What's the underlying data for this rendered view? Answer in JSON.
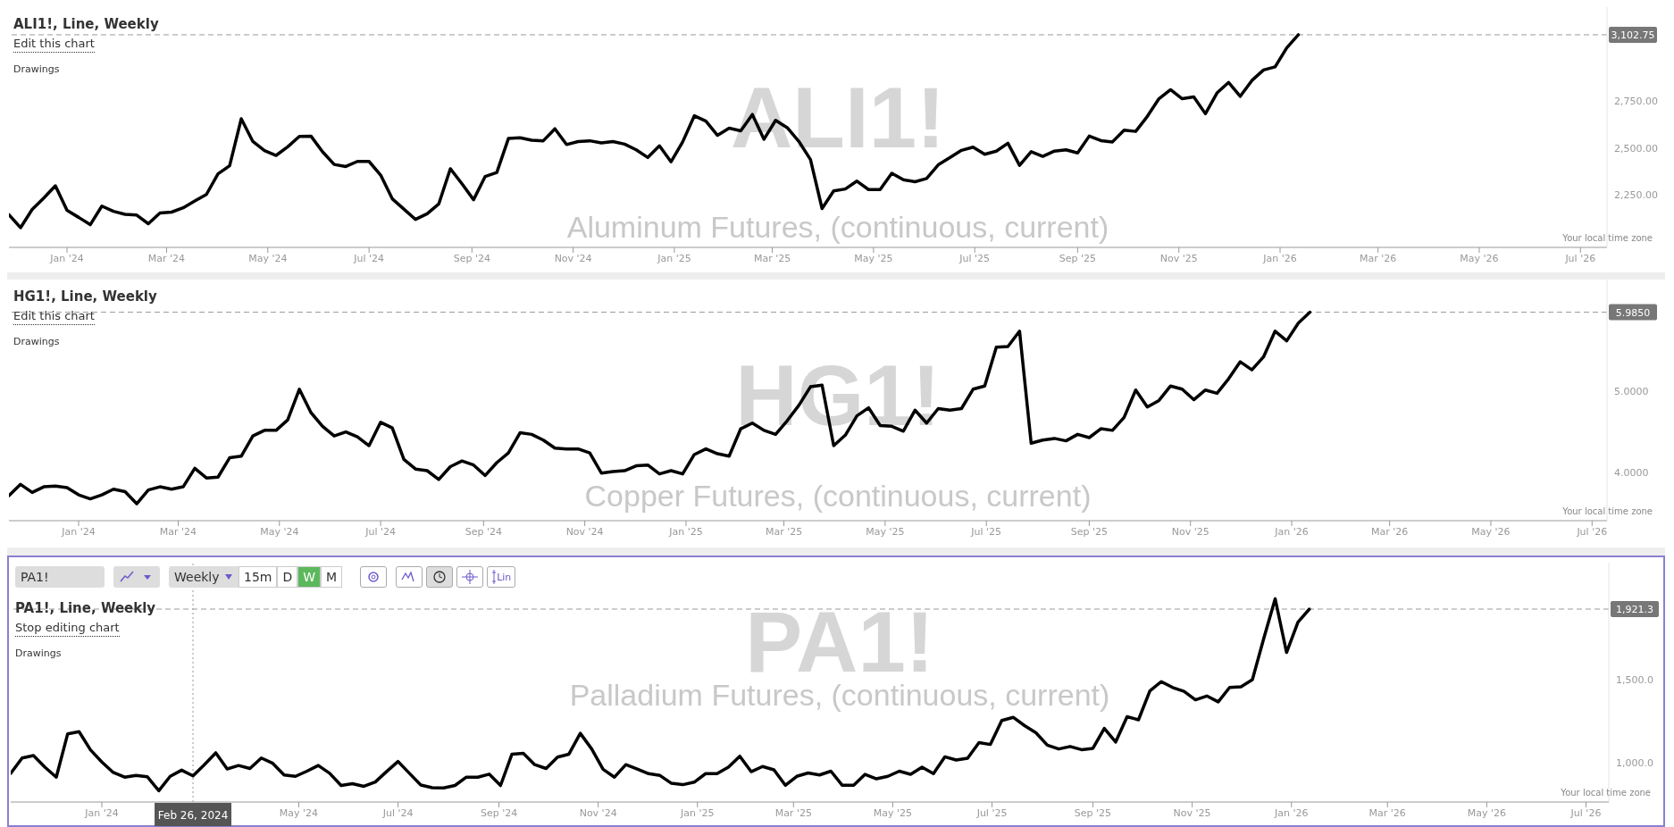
{
  "chart_data": [
    {
      "type": "line",
      "title": "ALI1!, Line, Weekly",
      "annotations": [
        "Edit this chart",
        "Drawings",
        "ALI1!",
        "Aluminum Futures, (continuous, current)",
        "Your local time zone"
      ],
      "x": [
        "2023-11-27",
        "2023-12-04",
        "2023-12-11",
        "2023-12-18",
        "2023-12-25",
        "2024-01-01",
        "2024-01-08",
        "2024-01-15",
        "2024-01-22",
        "2024-01-29",
        "2024-02-05",
        "2024-02-12",
        "2024-02-19",
        "2024-02-26",
        "2024-03-04",
        "2024-03-11",
        "2024-03-18",
        "2024-03-25",
        "2024-04-01",
        "2024-04-08",
        "2024-04-15",
        "2024-04-22",
        "2024-04-29",
        "2024-05-06",
        "2024-05-13",
        "2024-05-20",
        "2024-05-27",
        "2024-06-03",
        "2024-06-10",
        "2024-06-17",
        "2024-06-24",
        "2024-07-01",
        "2024-07-08",
        "2024-07-15",
        "2024-07-22",
        "2024-07-29",
        "2024-08-05",
        "2024-08-12",
        "2024-08-19",
        "2024-08-26",
        "2024-09-02",
        "2024-09-09",
        "2024-09-16",
        "2024-09-23",
        "2024-09-30",
        "2024-10-07",
        "2024-10-14",
        "2024-10-21",
        "2024-10-28",
        "2024-11-04",
        "2024-11-11",
        "2024-11-18",
        "2024-11-25",
        "2024-12-02",
        "2024-12-09",
        "2024-12-16",
        "2024-12-23",
        "2024-12-30",
        "2025-01-06",
        "2025-01-13",
        "2025-01-20",
        "2025-01-27",
        "2025-02-03",
        "2025-02-10",
        "2025-02-17",
        "2025-02-24",
        "2025-03-03",
        "2025-03-10",
        "2025-03-17",
        "2025-03-24",
        "2025-03-31",
        "2025-04-07",
        "2025-04-14",
        "2025-04-21",
        "2025-04-28",
        "2025-05-05",
        "2025-05-12",
        "2025-05-19",
        "2025-05-26",
        "2025-06-02",
        "2025-06-09",
        "2025-06-16",
        "2025-06-23",
        "2025-06-30",
        "2025-07-07",
        "2025-07-14",
        "2025-07-21",
        "2025-07-28",
        "2025-08-04",
        "2025-08-11",
        "2025-08-18",
        "2025-08-25",
        "2025-09-01",
        "2025-09-08",
        "2025-09-15",
        "2025-09-22",
        "2025-09-29",
        "2025-10-06",
        "2025-10-13",
        "2025-10-20",
        "2025-10-27",
        "2025-11-03",
        "2025-11-10",
        "2025-11-17",
        "2025-11-24",
        "2025-12-01",
        "2025-12-08",
        "2025-12-15",
        "2025-12-22",
        "2025-12-29",
        "2026-01-05",
        "2026-01-12"
      ],
      "series": [
        {
          "color": "#000000",
          "values": [
            2144,
            2075,
            2172,
            2233,
            2298,
            2167,
            2130,
            2091,
            2190,
            2162,
            2146,
            2142,
            2096,
            2153,
            2158,
            2181,
            2217,
            2252,
            2362,
            2405,
            2655,
            2534,
            2486,
            2460,
            2506,
            2561,
            2563,
            2479,
            2412,
            2401,
            2428,
            2428,
            2355,
            2229,
            2174,
            2119,
            2149,
            2201,
            2389,
            2309,
            2224,
            2348,
            2369,
            2550,
            2554,
            2541,
            2538,
            2602,
            2518,
            2534,
            2538,
            2527,
            2534,
            2520,
            2490,
            2449,
            2511,
            2426,
            2532,
            2671,
            2643,
            2567,
            2605,
            2591,
            2678,
            2546,
            2647,
            2608,
            2535,
            2438,
            2177,
            2271,
            2281,
            2323,
            2278,
            2278,
            2365,
            2330,
            2320,
            2337,
            2410,
            2448,
            2487,
            2504,
            2466,
            2483,
            2525,
            2407,
            2480,
            2455,
            2483,
            2490,
            2473,
            2563,
            2539,
            2532,
            2595,
            2588,
            2668,
            2762,
            2810,
            2762,
            2772,
            2682,
            2793,
            2849,
            2775,
            2859,
            2915,
            2932,
            3033,
            3102.75
          ]
        }
      ],
      "line_style": "solid",
      "xlim": [
        "2023-11-27",
        "2026-07-17"
      ],
      "xticks": [
        {
          "value": "2024-01-01",
          "label": "Jan '24"
        },
        {
          "value": "2024-03-01",
          "label": "Mar '24"
        },
        {
          "value": "2024-05-01",
          "label": "May '24"
        },
        {
          "value": "2024-07-01",
          "label": "Jul '24"
        },
        {
          "value": "2024-09-01",
          "label": "Sep '24"
        },
        {
          "value": "2024-11-01",
          "label": "Nov '24"
        },
        {
          "value": "2025-01-01",
          "label": "Jan '25"
        },
        {
          "value": "2025-03-01",
          "label": "Mar '25"
        },
        {
          "value": "2025-05-01",
          "label": "May '25"
        },
        {
          "value": "2025-07-01",
          "label": "Jul '25"
        },
        {
          "value": "2025-09-01",
          "label": "Sep '25"
        },
        {
          "value": "2025-11-01",
          "label": "Nov '25"
        },
        {
          "value": "2026-01-01",
          "label": "Jan '26"
        },
        {
          "value": "2026-03-01",
          "label": "Mar '26"
        },
        {
          "value": "2026-05-01",
          "label": "May '26"
        },
        {
          "value": "2026-07-01",
          "label": "Jul '26"
        }
      ],
      "ylim": [
        1970,
        3250
      ],
      "yticks": [
        {
          "value": 2250,
          "label": "2,250.00"
        },
        {
          "value": 2500,
          "label": "2,500.00"
        },
        {
          "value": 2750,
          "label": "2,750.00"
        }
      ],
      "ref_lines": [
        {
          "axis": "y",
          "value": 3102.75,
          "label": "3,102.75",
          "line_style": "dashed",
          "color": "#999999"
        }
      ]
    },
    {
      "type": "line",
      "title": "HG1!, Line, Weekly",
      "annotations": [
        "Edit this chart",
        "Drawings",
        "HG1!",
        "Copper Futures, (continuous, current)",
        "Your local time zone"
      ],
      "x": [
        "2023-11-20",
        "2023-11-27",
        "2023-12-04",
        "2023-12-11",
        "2023-12-18",
        "2023-12-25",
        "2024-01-01",
        "2024-01-08",
        "2024-01-15",
        "2024-01-22",
        "2024-01-29",
        "2024-02-05",
        "2024-02-12",
        "2024-02-19",
        "2024-02-26",
        "2024-03-04",
        "2024-03-11",
        "2024-03-18",
        "2024-03-25",
        "2024-04-01",
        "2024-04-08",
        "2024-04-15",
        "2024-04-22",
        "2024-04-29",
        "2024-05-06",
        "2024-05-13",
        "2024-05-20",
        "2024-05-27",
        "2024-06-03",
        "2024-06-10",
        "2024-06-17",
        "2024-06-24",
        "2024-07-01",
        "2024-07-08",
        "2024-07-15",
        "2024-07-22",
        "2024-07-29",
        "2024-08-05",
        "2024-08-12",
        "2024-08-19",
        "2024-08-26",
        "2024-09-02",
        "2024-09-09",
        "2024-09-16",
        "2024-09-23",
        "2024-09-30",
        "2024-10-07",
        "2024-10-14",
        "2024-10-21",
        "2024-10-28",
        "2024-11-04",
        "2024-11-11",
        "2024-11-18",
        "2024-11-25",
        "2024-12-02",
        "2024-12-09",
        "2024-12-16",
        "2024-12-23",
        "2024-12-30",
        "2025-01-06",
        "2025-01-13",
        "2025-01-20",
        "2025-01-27",
        "2025-02-03",
        "2025-02-10",
        "2025-02-17",
        "2025-02-24",
        "2025-03-03",
        "2025-03-10",
        "2025-03-17",
        "2025-03-24",
        "2025-03-31",
        "2025-04-07",
        "2025-04-14",
        "2025-04-21",
        "2025-04-28",
        "2025-05-05",
        "2025-05-12",
        "2025-05-19",
        "2025-05-26",
        "2025-06-02",
        "2025-06-09",
        "2025-06-16",
        "2025-06-23",
        "2025-06-30",
        "2025-07-07",
        "2025-07-14",
        "2025-07-21",
        "2025-07-28",
        "2025-08-04",
        "2025-08-11",
        "2025-08-18",
        "2025-08-25",
        "2025-09-01",
        "2025-09-08",
        "2025-09-15",
        "2025-09-22",
        "2025-09-29",
        "2025-10-06",
        "2025-10-13",
        "2025-10-20",
        "2025-10-27",
        "2025-11-03",
        "2025-11-10",
        "2025-11-17",
        "2025-11-24",
        "2025-12-01",
        "2025-12-08",
        "2025-12-15",
        "2025-12-22",
        "2025-12-29",
        "2026-01-05",
        "2026-01-12"
      ],
      "series": [
        {
          "color": "#000000",
          "values": [
            3.71,
            3.85,
            3.75,
            3.82,
            3.83,
            3.81,
            3.72,
            3.67,
            3.72,
            3.79,
            3.76,
            3.61,
            3.78,
            3.82,
            3.79,
            3.82,
            4.05,
            3.93,
            3.94,
            4.18,
            4.2,
            4.45,
            4.52,
            4.52,
            4.65,
            5.03,
            4.74,
            4.57,
            4.45,
            4.5,
            4.44,
            4.33,
            4.62,
            4.55,
            4.16,
            4.04,
            4.02,
            3.91,
            4.07,
            4.14,
            4.09,
            3.96,
            4.12,
            4.24,
            4.49,
            4.47,
            4.4,
            4.3,
            4.29,
            4.29,
            4.24,
            3.99,
            4.01,
            4.02,
            4.08,
            4.09,
            3.98,
            4.02,
            3.98,
            4.22,
            4.29,
            4.23,
            4.2,
            4.54,
            4.61,
            4.52,
            4.47,
            4.64,
            4.83,
            5.06,
            5.08,
            4.33,
            4.46,
            4.7,
            4.8,
            4.58,
            4.57,
            4.51,
            4.77,
            4.61,
            4.79,
            4.77,
            4.79,
            5.03,
            5.07,
            5.55,
            5.56,
            5.75,
            4.36,
            4.4,
            4.42,
            4.39,
            4.47,
            4.43,
            4.54,
            4.52,
            4.68,
            5.02,
            4.81,
            4.89,
            5.07,
            5.03,
            4.9,
            5.02,
            4.98,
            5.16,
            5.37,
            5.27,
            5.43,
            5.75,
            5.63,
            5.85,
            5.985
          ]
        }
      ],
      "line_style": "solid",
      "xlim": [
        "2023-11-20",
        "2026-07-10"
      ],
      "xticks": [
        {
          "value": "2024-01-01",
          "label": "Jan '24"
        },
        {
          "value": "2024-03-01",
          "label": "Mar '24"
        },
        {
          "value": "2024-05-01",
          "label": "May '24"
        },
        {
          "value": "2024-07-01",
          "label": "Jul '24"
        },
        {
          "value": "2024-09-01",
          "label": "Sep '24"
        },
        {
          "value": "2024-11-01",
          "label": "Nov '24"
        },
        {
          "value": "2025-01-01",
          "label": "Jan '25"
        },
        {
          "value": "2025-03-01",
          "label": "Mar '25"
        },
        {
          "value": "2025-05-01",
          "label": "May '25"
        },
        {
          "value": "2025-07-01",
          "label": "Jul '25"
        },
        {
          "value": "2025-09-01",
          "label": "Sep '25"
        },
        {
          "value": "2025-11-01",
          "label": "Nov '25"
        },
        {
          "value": "2026-01-01",
          "label": "Jan '26"
        },
        {
          "value": "2026-03-01",
          "label": "Mar '26"
        },
        {
          "value": "2026-05-01",
          "label": "May '26"
        },
        {
          "value": "2026-07-01",
          "label": "Jul '26"
        }
      ],
      "ylim": [
        3.4,
        6.39
      ],
      "yticks": [
        {
          "value": 4,
          "label": "4.0000"
        },
        {
          "value": 5,
          "label": "5.0000"
        }
      ],
      "ref_lines": [
        {
          "axis": "y",
          "value": 5.985,
          "label": "5.9850",
          "line_style": "dashed",
          "color": "#999999"
        }
      ]
    },
    {
      "type": "line",
      "title": "PA1!, Line, Weekly",
      "annotations": [
        "Stop editing chart",
        "Drawings",
        "PA1!",
        "Palladium Futures, (continuous, current)",
        "Your local time zone",
        "PA1!",
        "Weekly",
        "15m",
        "D",
        "W",
        "M",
        "Lin"
      ],
      "x": [
        "2023-11-06",
        "2023-11-13",
        "2023-11-20",
        "2023-11-27",
        "2023-12-04",
        "2023-12-11",
        "2023-12-18",
        "2023-12-25",
        "2024-01-01",
        "2024-01-08",
        "2024-01-15",
        "2024-01-22",
        "2024-01-29",
        "2024-02-05",
        "2024-02-12",
        "2024-02-19",
        "2024-02-26",
        "2024-03-04",
        "2024-03-11",
        "2024-03-18",
        "2024-03-25",
        "2024-04-01",
        "2024-04-08",
        "2024-04-15",
        "2024-04-22",
        "2024-04-29",
        "2024-05-06",
        "2024-05-13",
        "2024-05-20",
        "2024-05-27",
        "2024-06-03",
        "2024-06-10",
        "2024-06-17",
        "2024-06-24",
        "2024-07-01",
        "2024-07-08",
        "2024-07-15",
        "2024-07-22",
        "2024-07-29",
        "2024-08-05",
        "2024-08-12",
        "2024-08-19",
        "2024-08-26",
        "2024-09-02",
        "2024-09-09",
        "2024-09-16",
        "2024-09-23",
        "2024-09-30",
        "2024-10-07",
        "2024-10-14",
        "2024-10-21",
        "2024-10-28",
        "2024-11-04",
        "2024-11-11",
        "2024-11-18",
        "2024-11-25",
        "2024-12-02",
        "2024-12-09",
        "2024-12-16",
        "2024-12-23",
        "2024-12-30",
        "2025-01-06",
        "2025-01-13",
        "2025-01-20",
        "2025-01-27",
        "2025-02-03",
        "2025-02-10",
        "2025-02-17",
        "2025-02-24",
        "2025-03-03",
        "2025-03-10",
        "2025-03-17",
        "2025-03-24",
        "2025-03-31",
        "2025-04-07",
        "2025-04-14",
        "2025-04-21",
        "2025-04-28",
        "2025-05-05",
        "2025-05-12",
        "2025-05-19",
        "2025-05-26",
        "2025-06-02",
        "2025-06-09",
        "2025-06-16",
        "2025-06-23",
        "2025-06-30",
        "2025-07-07",
        "2025-07-14",
        "2025-07-21",
        "2025-07-28",
        "2025-08-04",
        "2025-08-11",
        "2025-08-18",
        "2025-08-25",
        "2025-09-01",
        "2025-09-08",
        "2025-09-15",
        "2025-09-22",
        "2025-09-29",
        "2025-10-06",
        "2025-10-13",
        "2025-10-20",
        "2025-10-27",
        "2025-11-03",
        "2025-11-10",
        "2025-11-17",
        "2025-11-24",
        "2025-12-01",
        "2025-12-08",
        "2025-12-15",
        "2025-12-22",
        "2025-12-29",
        "2026-01-05",
        "2026-01-12"
      ],
      "series": [
        {
          "color": "#000000",
          "values": [
            936,
            1028,
            1043,
            973,
            913,
            1173,
            1186,
            1077,
            1004,
            941,
            913,
            923,
            915,
            832,
            918,
            955,
            921,
            988,
            1059,
            962,
            983,
            965,
            1028,
            996,
            926,
            918,
            949,
            983,
            936,
            863,
            874,
            858,
            884,
            947,
            1007,
            936,
            866,
            850,
            848,
            863,
            913,
            913,
            931,
            863,
            1051,
            1056,
            988,
            965,
            1033,
            1051,
            1176,
            1082,
            960,
            913,
            988,
            962,
            934,
            923,
            876,
            868,
            883,
            934,
            934,
            973,
            1039,
            946,
            977,
            957,
            864,
            918,
            938,
            926,
            949,
            864,
            864,
            930,
            903,
            918,
            949,
            930,
            973,
            934,
            1035,
            1016,
            1027,
            1120,
            1109,
            1253,
            1272,
            1222,
            1179,
            1105,
            1082,
            1097,
            1078,
            1086,
            1206,
            1124,
            1276,
            1257,
            1431,
            1486,
            1451,
            1428,
            1377,
            1400,
            1365,
            1451,
            1455,
            1498,
            1746,
            1983,
            1661,
            1843,
            1921.3
          ]
        }
      ],
      "line_style": "solid",
      "xlim": [
        "2023-11-06",
        "2026-07-15"
      ],
      "xticks": [
        {
          "value": "2024-01-01",
          "label": "Jan '24"
        },
        {
          "value": "2024-05-01",
          "label": "May '24"
        },
        {
          "value": "2024-07-01",
          "label": "Jul '24"
        },
        {
          "value": "2024-09-01",
          "label": "Sep '24"
        },
        {
          "value": "2024-11-01",
          "label": "Nov '24"
        },
        {
          "value": "2025-01-01",
          "label": "Jan '25"
        },
        {
          "value": "2025-03-01",
          "label": "Mar '25"
        },
        {
          "value": "2025-05-01",
          "label": "May '25"
        },
        {
          "value": "2025-07-01",
          "label": "Jul '25"
        },
        {
          "value": "2025-09-01",
          "label": "Sep '25"
        },
        {
          "value": "2025-11-01",
          "label": "Nov '25"
        },
        {
          "value": "2026-01-01",
          "label": "Jan '26"
        },
        {
          "value": "2026-03-01",
          "label": "Mar '26"
        },
        {
          "value": "2026-05-01",
          "label": "May '26"
        },
        {
          "value": "2026-07-01",
          "label": "Jul '26"
        }
      ],
      "ylim": [
        764,
        2200
      ],
      "yticks": [
        {
          "value": 1000,
          "label": "1,000.0"
        },
        {
          "value": 1500,
          "label": "1,500.0"
        }
      ],
      "ref_lines": [
        {
          "axis": "y",
          "value": 1921.3,
          "label": "1,921.3",
          "line_style": "dashed",
          "color": "#999999"
        },
        {
          "axis": "x",
          "value": "2024-02-26",
          "label": "Feb 26, 2024",
          "line_style": "dotted",
          "color": "#999999"
        }
      ]
    }
  ]
}
